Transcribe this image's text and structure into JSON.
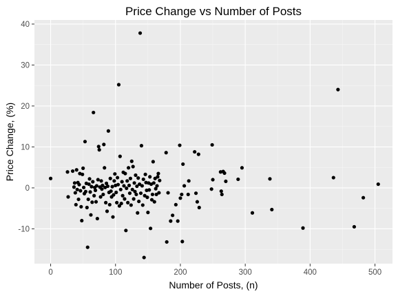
{
  "colors": {
    "panel_background": "#ebebeb",
    "grid_major": "#ffffff",
    "grid_minor": "#f5f5f5",
    "point": "#000000",
    "tick": "#333333"
  },
  "chart_data": {
    "type": "scatter",
    "title": "Price Change vs Number of Posts",
    "xlabel": "Number of Posts, (n)",
    "ylabel": "Price Change, (%)",
    "xlim": [
      -25,
      527
    ],
    "ylim": [
      -18.5,
      41
    ],
    "x_ticks": [
      0,
      100,
      200,
      300,
      400,
      500
    ],
    "y_ticks": [
      -10,
      0,
      10,
      20,
      30,
      40
    ],
    "grid": true,
    "points": [
      [
        0,
        2.3
      ],
      [
        26,
        3.9
      ],
      [
        27,
        -2.2
      ],
      [
        34,
        4.1
      ],
      [
        36,
        0.2
      ],
      [
        37,
        1.2
      ],
      [
        38,
        -1.2
      ],
      [
        39,
        -4.1
      ],
      [
        40,
        4.4
      ],
      [
        41,
        -0.4
      ],
      [
        42,
        1.3
      ],
      [
        43,
        -2.8
      ],
      [
        44,
        0.8
      ],
      [
        45,
        3.5
      ],
      [
        46,
        -0.7
      ],
      [
        47,
        -4.6
      ],
      [
        48,
        -8.0
      ],
      [
        49,
        3.3
      ],
      [
        50,
        4.8
      ],
      [
        51,
        0.1
      ],
      [
        52,
        -1.4
      ],
      [
        53,
        11.3
      ],
      [
        54,
        -0.9
      ],
      [
        55,
        1.1
      ],
      [
        56,
        -4.8
      ],
      [
        57,
        -14.5
      ],
      [
        58,
        -2.8
      ],
      [
        59,
        0.9
      ],
      [
        60,
        2.2
      ],
      [
        61,
        -1.0
      ],
      [
        62,
        -6.6
      ],
      [
        63,
        0.3
      ],
      [
        64,
        -3.5
      ],
      [
        65,
        1.5
      ],
      [
        66,
        18.4
      ],
      [
        67,
        -1.9
      ],
      [
        68,
        0.1
      ],
      [
        69,
        -0.6
      ],
      [
        70,
        -3.4
      ],
      [
        71,
        0.5
      ],
      [
        72,
        -7.5
      ],
      [
        73,
        2.0
      ],
      [
        74,
        10.1
      ],
      [
        75,
        9.3
      ],
      [
        76,
        0.2
      ],
      [
        77,
        -2.2
      ],
      [
        78,
        1.7
      ],
      [
        79,
        -0.3
      ],
      [
        80,
        0.6
      ],
      [
        81,
        -1.6
      ],
      [
        82,
        10.6
      ],
      [
        83,
        4.9
      ],
      [
        84,
        0.1
      ],
      [
        85,
        -3.6
      ],
      [
        86,
        1.1
      ],
      [
        87,
        -5.7
      ],
      [
        88,
        0.4
      ],
      [
        89,
        13.9
      ],
      [
        90,
        -1.1
      ],
      [
        91,
        -4.1
      ],
      [
        92,
        2.3
      ],
      [
        93,
        -0.8
      ],
      [
        94,
        -2.2
      ],
      [
        95,
        0.3
      ],
      [
        96,
        -7.1
      ],
      [
        97,
        -1.7
      ],
      [
        98,
        1.7
      ],
      [
        99,
        3.4
      ],
      [
        100,
        0.6
      ],
      [
        101,
        -1.1
      ],
      [
        102,
        -3.6
      ],
      [
        103,
        2.5
      ],
      [
        104,
        0.8
      ],
      [
        105,
        25.2
      ],
      [
        106,
        -4.4
      ],
      [
        107,
        7.7
      ],
      [
        108,
        -0.4
      ],
      [
        109,
        -3.8
      ],
      [
        110,
        1.5
      ],
      [
        111,
        -1.9
      ],
      [
        112,
        3.8
      ],
      [
        113,
        0.5
      ],
      [
        114,
        -2.7
      ],
      [
        115,
        3.5
      ],
      [
        116,
        -10.4
      ],
      [
        117,
        -0.1
      ],
      [
        118,
        1.7
      ],
      [
        119,
        -3.6
      ],
      [
        120,
        4.9
      ],
      [
        121,
        0.6
      ],
      [
        122,
        -1.3
      ],
      [
        123,
        2.3
      ],
      [
        124,
        -4.2
      ],
      [
        125,
        6.5
      ],
      [
        126,
        -0.4
      ],
      [
        127,
        5.2
      ],
      [
        128,
        -2.7
      ],
      [
        129,
        1.2
      ],
      [
        130,
        -0.9
      ],
      [
        131,
        3.1
      ],
      [
        132,
        -1.6
      ],
      [
        133,
        0.4
      ],
      [
        134,
        -6.1
      ],
      [
        135,
        2.4
      ],
      [
        136,
        -3.3
      ],
      [
        137,
        0.9
      ],
      [
        138,
        37.8
      ],
      [
        139,
        -1.3
      ],
      [
        140,
        10.3
      ],
      [
        141,
        0.5
      ],
      [
        142,
        -4.2
      ],
      [
        143,
        2.1
      ],
      [
        144,
        -17.0
      ],
      [
        145,
        -1.9
      ],
      [
        146,
        3.3
      ],
      [
        147,
        1.3
      ],
      [
        148,
        -0.6
      ],
      [
        149,
        -2.3
      ],
      [
        150,
        -6.0
      ],
      [
        151,
        1.2
      ],
      [
        152,
        -0.5
      ],
      [
        153,
        2.7
      ],
      [
        154,
        -9.9
      ],
      [
        155,
        0.9
      ],
      [
        156,
        -2.9
      ],
      [
        157,
        -1.6
      ],
      [
        158,
        6.4
      ],
      [
        159,
        1.2
      ],
      [
        160,
        -3.4
      ],
      [
        161,
        2.3
      ],
      [
        162,
        -0.2
      ],
      [
        163,
        -1.6
      ],
      [
        164,
        0.5
      ],
      [
        165,
        2.7
      ],
      [
        166,
        3.5
      ],
      [
        167,
        -1.2
      ],
      [
        168,
        1.8
      ],
      [
        178,
        8.6
      ],
      [
        179,
        -13.2
      ],
      [
        181,
        -1.2
      ],
      [
        185,
        -8.1
      ],
      [
        188,
        -6.7
      ],
      [
        193,
        -4.1
      ],
      [
        196,
        -8.1
      ],
      [
        199,
        10.4
      ],
      [
        200,
        -2.5
      ],
      [
        202,
        -1.6
      ],
      [
        203,
        -13.1
      ],
      [
        204,
        5.8
      ],
      [
        206,
        0.5
      ],
      [
        212,
        -1.6
      ],
      [
        213,
        1.7
      ],
      [
        222,
        8.8
      ],
      [
        224,
        -1.3
      ],
      [
        226,
        -3.4
      ],
      [
        228,
        8.2
      ],
      [
        229,
        -4.8
      ],
      [
        248,
        -0.3
      ],
      [
        249,
        10.5
      ],
      [
        250,
        2.0
      ],
      [
        262,
        3.9
      ],
      [
        263,
        -0.8
      ],
      [
        264,
        -1.6
      ],
      [
        266,
        4.0
      ],
      [
        268,
        3.6
      ],
      [
        270,
        1.6
      ],
      [
        289,
        2.1
      ],
      [
        295,
        4.9
      ],
      [
        311,
        -6.1
      ],
      [
        338,
        2.2
      ],
      [
        341,
        -5.3
      ],
      [
        389,
        -9.8
      ],
      [
        436,
        2.5
      ],
      [
        443,
        24.0
      ],
      [
        468,
        -9.5
      ],
      [
        482,
        -2.4
      ],
      [
        505,
        0.9
      ]
    ]
  }
}
